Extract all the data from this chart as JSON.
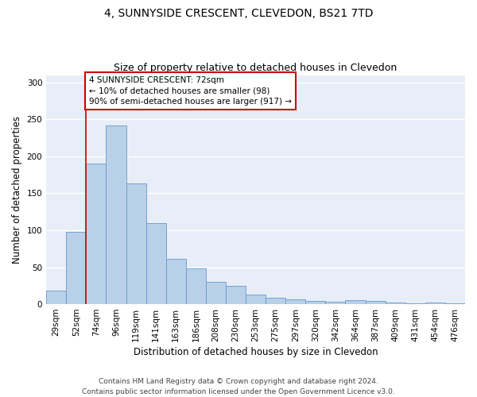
{
  "title": "4, SUNNYSIDE CRESCENT, CLEVEDON, BS21 7TD",
  "subtitle": "Size of property relative to detached houses in Clevedon",
  "xlabel": "Distribution of detached houses by size in Clevedon",
  "ylabel": "Number of detached properties",
  "categories": [
    "29sqm",
    "52sqm",
    "74sqm",
    "96sqm",
    "119sqm",
    "141sqm",
    "163sqm",
    "186sqm",
    "208sqm",
    "230sqm",
    "253sqm",
    "275sqm",
    "297sqm",
    "320sqm",
    "342sqm",
    "364sqm",
    "387sqm",
    "409sqm",
    "431sqm",
    "454sqm",
    "476sqm"
  ],
  "values": [
    18,
    98,
    190,
    242,
    163,
    110,
    61,
    48,
    30,
    25,
    13,
    9,
    6,
    4,
    3,
    5,
    4,
    2,
    1,
    2,
    1
  ],
  "bar_color": "#b8d0e8",
  "bar_edge_color": "#6699cc",
  "background_color": "#e8eef8",
  "grid_color": "#ffffff",
  "annotation_box_text": "4 SUNNYSIDE CRESCENT: 72sqm\n← 10% of detached houses are smaller (98)\n90% of semi-detached houses are larger (917) →",
  "annotation_box_color": "white",
  "annotation_box_edge_color": "#cc0000",
  "vline_color": "#cc0000",
  "vline_index": 2,
  "ylim": [
    0,
    310
  ],
  "yticks": [
    0,
    50,
    100,
    150,
    200,
    250,
    300
  ],
  "footer_line1": "Contains HM Land Registry data © Crown copyright and database right 2024.",
  "footer_line2": "Contains public sector information licensed under the Open Government Licence v3.0.",
  "title_fontsize": 10,
  "subtitle_fontsize": 9,
  "xlabel_fontsize": 8.5,
  "ylabel_fontsize": 8.5,
  "tick_fontsize": 7.5,
  "footer_fontsize": 6.5,
  "ann_fontsize": 7.5
}
